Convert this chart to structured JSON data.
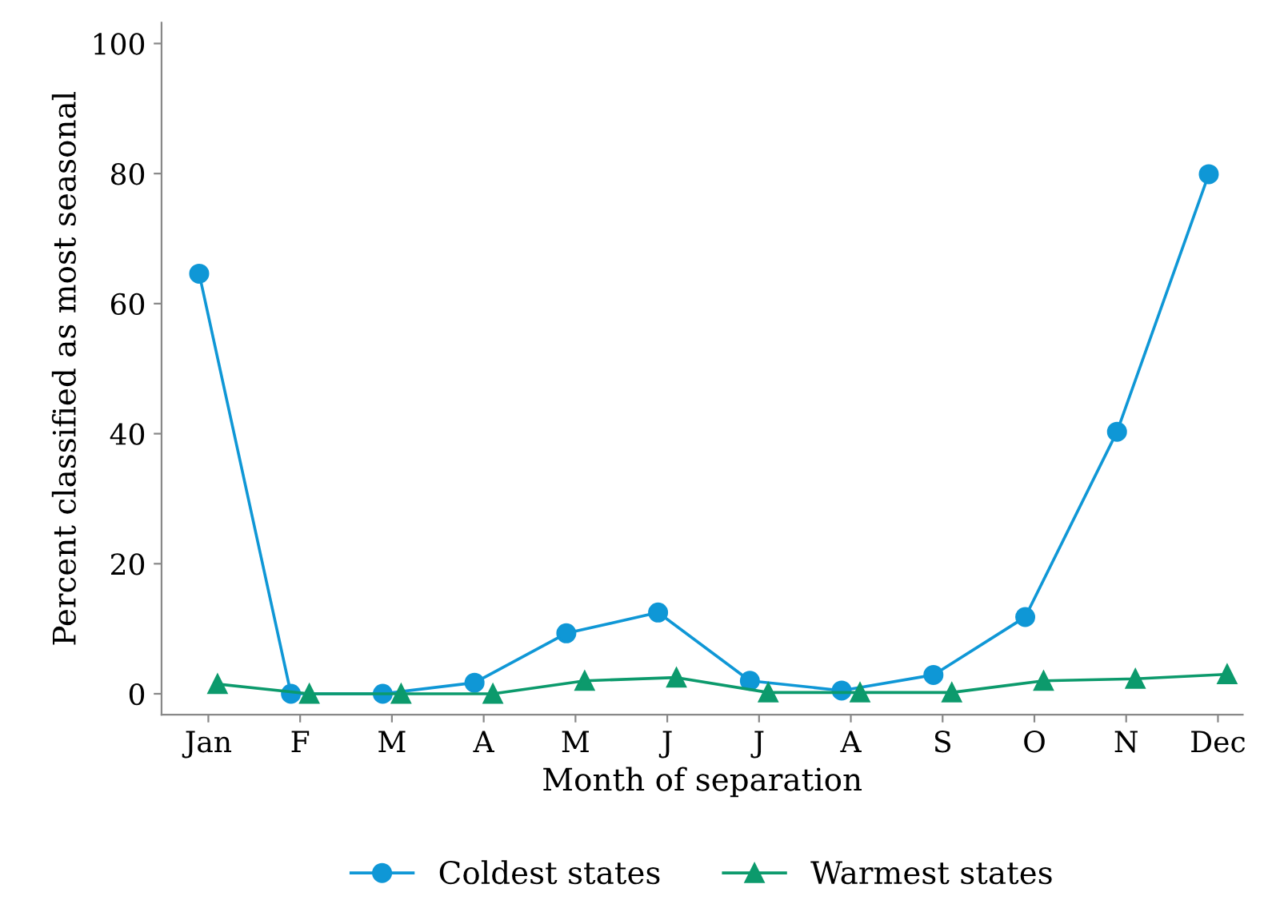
{
  "chart_data": {
    "type": "line",
    "xlabel": "Month of separation",
    "ylabel": "Percent classified as most seasonal",
    "categories": [
      "Jan",
      "F",
      "M",
      "A",
      "M",
      "J",
      "J",
      "A",
      "S",
      "O",
      "N",
      "Dec"
    ],
    "series": [
      {
        "name": "Coldest states",
        "color": "#0f97d6",
        "marker": "circle",
        "values": [
          64.6,
          0,
          0,
          1.7,
          9.3,
          12.5,
          2.0,
          0.5,
          2.9,
          11.8,
          40.3,
          79.9
        ]
      },
      {
        "name": "Warmest states",
        "color": "#0c9a6c",
        "marker": "triangle",
        "values": [
          1.5,
          0,
          0,
          0,
          2.0,
          2.5,
          0.2,
          0.2,
          0.2,
          2.0,
          2.3,
          3.0
        ]
      }
    ],
    "ylim": [
      -3.2,
      103.2
    ],
    "yticks": [
      0,
      20,
      40,
      60,
      80,
      100
    ],
    "grid": false,
    "legend": "bottom",
    "line_style": "solid"
  }
}
